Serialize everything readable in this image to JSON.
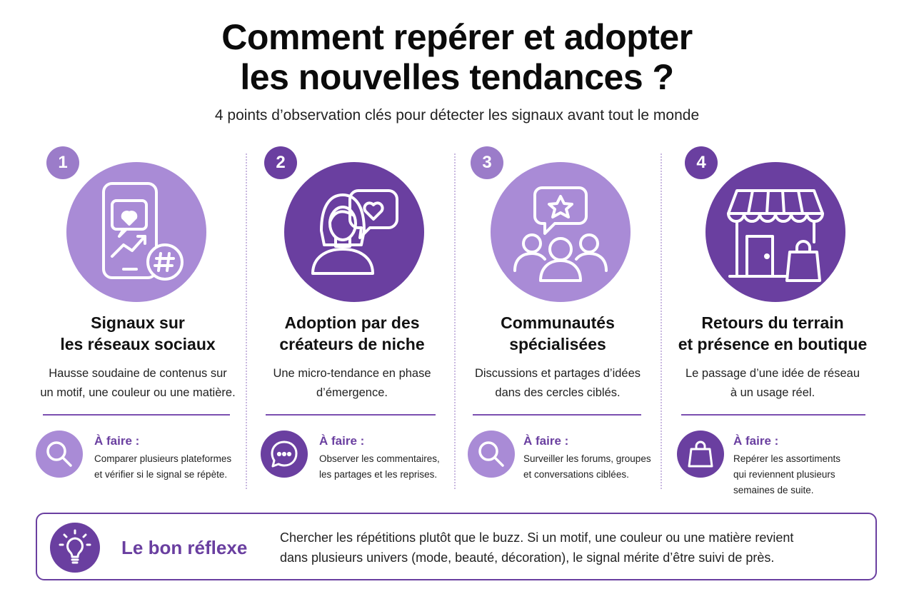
{
  "title": {
    "line1": "Comment repérer et adopter",
    "line2": "les nouvelles tendances ?"
  },
  "subtitle": "4 points d’observation clés pour détecter les signaux avant tout le monde",
  "colors": {
    "accent_dark": "#6a3fa0",
    "accent_light": "#a98bd6",
    "divider": "#c9b8e0"
  },
  "steps": [
    {
      "number": "1",
      "icon": "smartphone-heart-hashtag-icon",
      "title_line1": "Signaux sur",
      "title_line2": "les réseaux sociaux",
      "desc_line1": "Hausse soudaine de contenus sur",
      "desc_line2": "un motif, une couleur ou une matière.",
      "todo_icon": "search-icon",
      "todo_label": "À faire :",
      "todo_line1": "Comparer plusieurs plateformes",
      "todo_line2": "et vérifier si le signal se répète.",
      "todo_line3": ""
    },
    {
      "number": "2",
      "icon": "creator-speech-heart-icon",
      "title_line1": "Adoption par des",
      "title_line2": "créateurs de niche",
      "desc_line1": "Une micro-tendance en phase",
      "desc_line2": "d’émergence.",
      "todo_icon": "chat-bubble-icon",
      "todo_label": "À faire :",
      "todo_line1": "Observer les commentaires,",
      "todo_line2": "les partages et les reprises.",
      "todo_line3": ""
    },
    {
      "number": "3",
      "icon": "community-star-icon",
      "title_line1": "Communautés",
      "title_line2": "spécialisées",
      "desc_line1": "Discussions et partages d’idées",
      "desc_line2": "dans des cercles ciblés.",
      "todo_icon": "search-icon",
      "todo_label": "À faire :",
      "todo_line1": "Surveiller les forums, groupes",
      "todo_line2": "et conversations ciblées.",
      "todo_line3": ""
    },
    {
      "number": "4",
      "icon": "shop-storefront-icon",
      "title_line1": "Retours du terrain",
      "title_line2": "et présence en boutique",
      "desc_line1": "Le passage d’une idée de réseau",
      "desc_line2": "à un usage réel.",
      "todo_icon": "shopping-bag-icon",
      "todo_label": "À faire :",
      "todo_line1": "Repérer les assortiments",
      "todo_line2": "qui reviennent plusieurs",
      "todo_line3": "semaines de suite."
    }
  ],
  "tip": {
    "icon": "lightbulb-icon",
    "label": "Le bon réflexe",
    "line1": "Chercher les répétitions plutôt que le buzz. Si un motif, une couleur ou une matière revient",
    "line2": "dans plusieurs univers (mode, beauté, décoration), le signal mérite d’être suivi de près."
  }
}
